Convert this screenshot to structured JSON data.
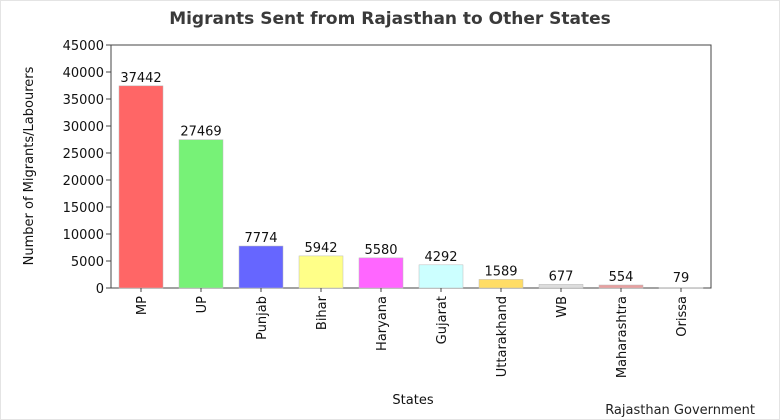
{
  "chart_data": {
    "type": "bar",
    "title": "Migrants Sent from Rajasthan to Other States",
    "xlabel": "States",
    "ylabel": "Number of Migrants/Labourers",
    "ylim": [
      0,
      45000
    ],
    "yticks": [
      0,
      5000,
      10000,
      15000,
      20000,
      25000,
      30000,
      35000,
      40000,
      45000
    ],
    "categories": [
      "MP",
      "UP",
      "Punjab",
      "Bihar",
      "Haryana",
      "Gujarat",
      "Uttarakhand",
      "WB",
      "Maharashtra",
      "Orissa"
    ],
    "values": [
      37442,
      27469,
      7774,
      5942,
      5580,
      4292,
      1589,
      677,
      554,
      79
    ],
    "colors": [
      "#ff6666",
      "#77f277",
      "#6666ff",
      "#ffff88",
      "#ff66ff",
      "#ccffff",
      "#ffdd66",
      "#dddddd",
      "#e8a0a0",
      "#fafafa"
    ],
    "grid": false,
    "legend": "none"
  },
  "source": "Rajasthan Government"
}
